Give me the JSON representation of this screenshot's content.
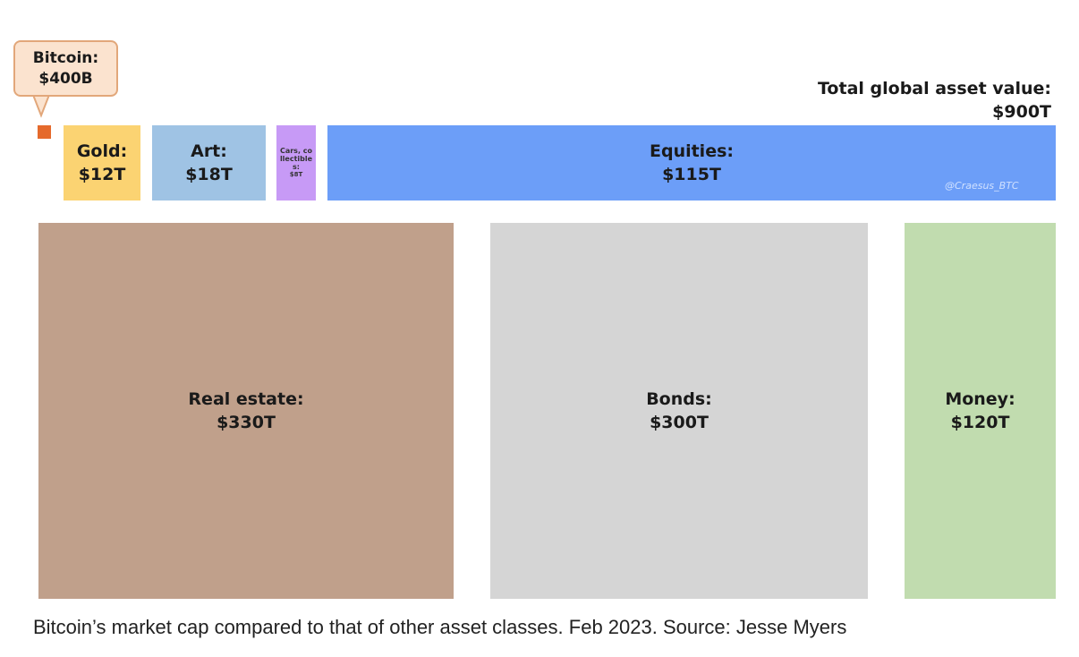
{
  "chart_data": {
    "type": "treemap",
    "title": "Total global asset value: $900T",
    "total": {
      "label": "Total global asset value:",
      "value_label": "$900T",
      "value_trillions": 900
    },
    "items": [
      {
        "name": "Bitcoin:",
        "value_label": "$400B",
        "value_trillions": 0.4,
        "color": "#e56a2c"
      },
      {
        "name": "Gold:",
        "value_label": "$12T",
        "value_trillions": 12,
        "color": "#fbd372"
      },
      {
        "name": "Art:",
        "value_label": "$18T",
        "value_trillions": 18,
        "color": "#9fc3e4"
      },
      {
        "name": "Cars, collectibles:",
        "value_label": "$8T",
        "value_trillions": 8,
        "color": "#c79af6"
      },
      {
        "name": "Equities:",
        "value_label": "$115T",
        "value_trillions": 115,
        "color": "#6c9ef8"
      },
      {
        "name": "Real estate:",
        "value_label": "$330T",
        "value_trillions": 330,
        "color": "#c0a08b"
      },
      {
        "name": "Bonds:",
        "value_label": "$300T",
        "value_trillions": 300,
        "color": "#d5d5d5"
      },
      {
        "name": "Money:",
        "value_label": "$120T",
        "value_trillions": 120,
        "color": "#c1dcaf"
      }
    ]
  },
  "watermark": "@Craesus_BTC",
  "caption": "Bitcoin’s market cap compared to that of other asset classes. Feb 2023. Source: Jesse Myers",
  "callout_colors": {
    "fill": "#fbe3cf",
    "border": "#e2a77a"
  }
}
